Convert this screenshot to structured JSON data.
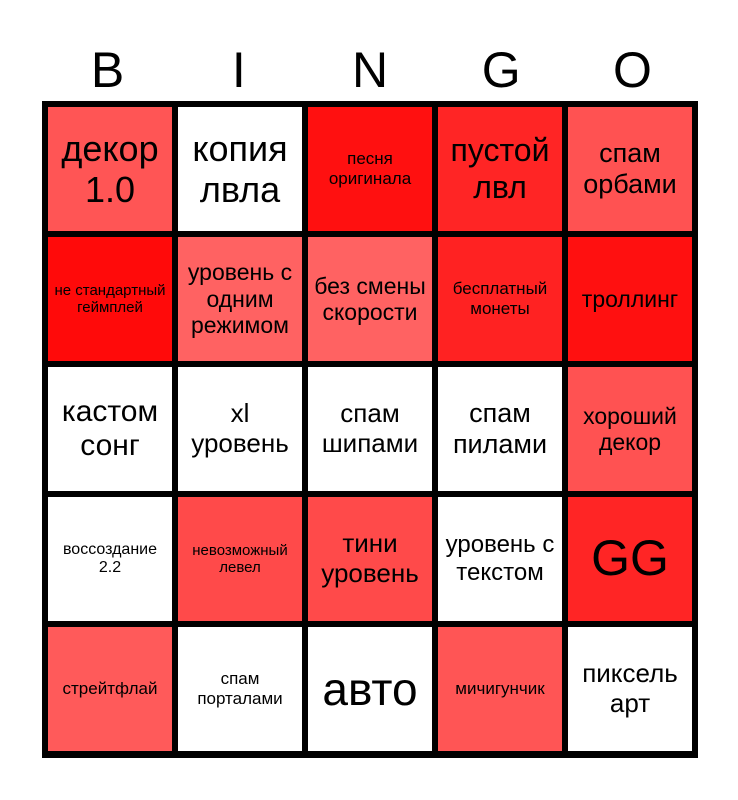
{
  "header": [
    "B",
    "I",
    "N",
    "G",
    "O"
  ],
  "cells": [
    {
      "text": "декор 1.0",
      "color": "#ff5555",
      "size": 36
    },
    {
      "text": "копия лвла",
      "color": "#ffffff",
      "size": 36
    },
    {
      "text": "песня оригинала",
      "color": "#ff1010",
      "size": 17
    },
    {
      "text": "пустой лвл",
      "color": "#ff2525",
      "size": 32
    },
    {
      "text": "спам орбами",
      "color": "#ff5252",
      "size": 27
    },
    {
      "text": "не стандартный геймплей",
      "color": "#ff0a0a",
      "size": 15
    },
    {
      "text": "уровень с одним режимом",
      "color": "#ff6262",
      "size": 23
    },
    {
      "text": "без смены скорости",
      "color": "#ff6262",
      "size": 23
    },
    {
      "text": "бесплатный монеты",
      "color": "#ff2222",
      "size": 17
    },
    {
      "text": "троллинг",
      "color": "#ff1010",
      "size": 23
    },
    {
      "text": "кастом сонг",
      "color": "#ffffff",
      "size": 30
    },
    {
      "text": "xl уровень",
      "color": "#ffffff",
      "size": 26
    },
    {
      "text": "спам шипами",
      "color": "#ffffff",
      "size": 26
    },
    {
      "text": "спам пилами",
      "color": "#ffffff",
      "size": 27
    },
    {
      "text": "хороший декор",
      "color": "#ff5252",
      "size": 23
    },
    {
      "text": "воссоздание 2.2",
      "color": "#ffffff",
      "size": 16
    },
    {
      "text": "невозможный левел",
      "color": "#ff4a4a",
      "size": 15
    },
    {
      "text": "тини уровень",
      "color": "#ff4a4a",
      "size": 26
    },
    {
      "text": "уровень с текстом",
      "color": "#ffffff",
      "size": 24
    },
    {
      "text": "GG",
      "color": "#ff2525",
      "size": 50
    },
    {
      "text": "стрейтфлай",
      "color": "#ff5a5a",
      "size": 17
    },
    {
      "text": "спам порталами",
      "color": "#ffffff",
      "size": 17
    },
    {
      "text": "авто",
      "color": "#ffffff",
      "size": 46
    },
    {
      "text": "мичигунчик",
      "color": "#ff5555",
      "size": 17
    },
    {
      "text": "пиксель арт",
      "color": "#ffffff",
      "size": 26
    }
  ]
}
